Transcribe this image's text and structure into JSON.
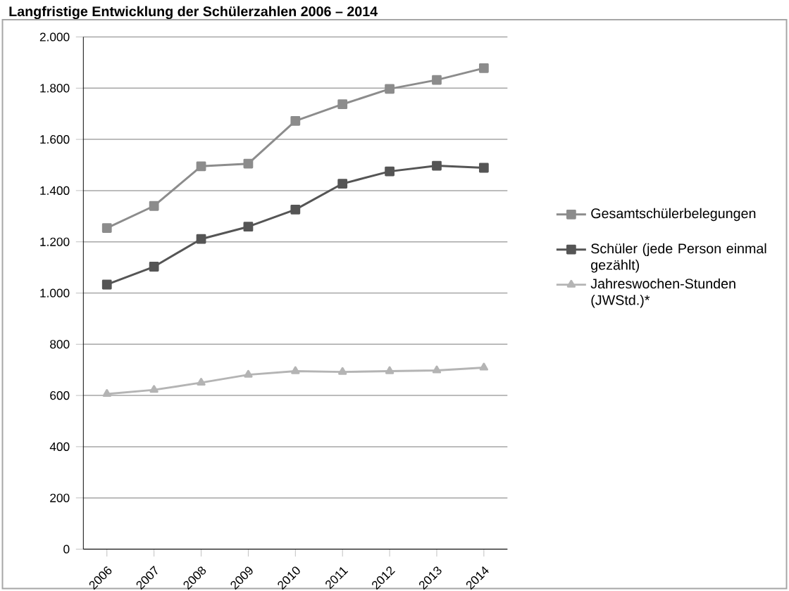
{
  "chart_data": {
    "type": "line",
    "title": "Langfristige Entwicklung der Schülerzahlen 2006 – 2014",
    "categories": [
      "2006",
      "2007",
      "2008",
      "2009",
      "2010",
      "2011",
      "2012",
      "2013",
      "2014"
    ],
    "series": [
      {
        "name": "Gesamtschülerbelegungen",
        "color": "#8c8c8c",
        "marker": "square",
        "values": [
          1254,
          1340,
          1495,
          1505,
          1672,
          1737,
          1797,
          1832,
          1878
        ]
      },
      {
        "name": "Schüler (jede Person einmal gezählt)",
        "color": "#555555",
        "marker": "square",
        "values": [
          1033,
          1103,
          1211,
          1259,
          1326,
          1427,
          1475,
          1497,
          1489
        ]
      },
      {
        "name": "Jahreswochen-Stunden (JWStd.)*",
        "color": "#b4b4b4",
        "marker": "triangle",
        "values": [
          606,
          622,
          650,
          681,
          695,
          692,
          695,
          698,
          709
        ]
      }
    ],
    "ylim": [
      0,
      2000
    ],
    "yticks": [
      {
        "value": 0,
        "label": "0"
      },
      {
        "value": 200,
        "label": "200"
      },
      {
        "value": 400,
        "label": "400"
      },
      {
        "value": 600,
        "label": "600"
      },
      {
        "value": 800,
        "label": "800"
      },
      {
        "value": 1000,
        "label": "1.000"
      },
      {
        "value": 1200,
        "label": "1.200"
      },
      {
        "value": 1400,
        "label": "1.400"
      },
      {
        "value": 1600,
        "label": "1.600"
      },
      {
        "value": 1800,
        "label": "1.800"
      },
      {
        "value": 2000,
        "label": "2.000"
      }
    ],
    "grid": "y",
    "legend": "right",
    "line_style": "solid"
  }
}
